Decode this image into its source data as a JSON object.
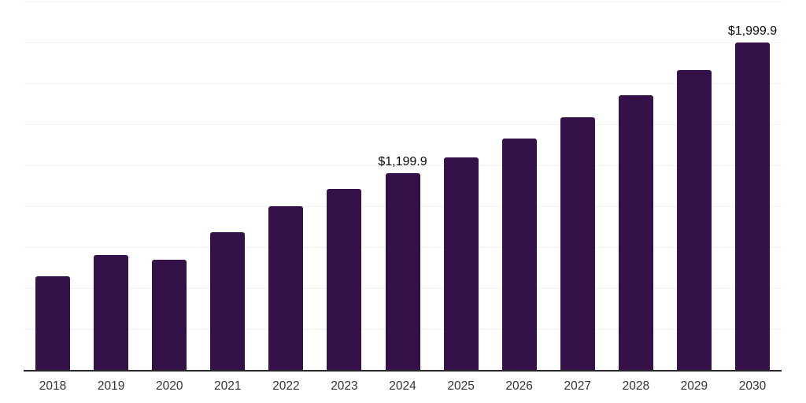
{
  "chart_data": {
    "type": "bar",
    "title": "",
    "xlabel": "",
    "ylabel": "",
    "categories": [
      "2018",
      "2019",
      "2020",
      "2021",
      "2022",
      "2023",
      "2024",
      "2025",
      "2026",
      "2027",
      "2028",
      "2029",
      "2030"
    ],
    "values": [
      570,
      702,
      673,
      840,
      1000,
      1108,
      1199.9,
      1300,
      1415,
      1542,
      1680,
      1833,
      1999.9
    ],
    "data_labels": {
      "2024": "$1,199.9",
      "2030": "$1,999.9"
    },
    "ylim": [
      0,
      2250
    ],
    "gridline_interval": 250,
    "grid": "horizontal, light gray, no y-axis tick labels",
    "legend": "none",
    "colors": {
      "bar": "#351149",
      "gridline": "#f0f0f0",
      "axis_line": "#262626",
      "value_label_text": "#0a0a0a",
      "x_tick_text": "#333333",
      "background": "#ffffff"
    }
  }
}
